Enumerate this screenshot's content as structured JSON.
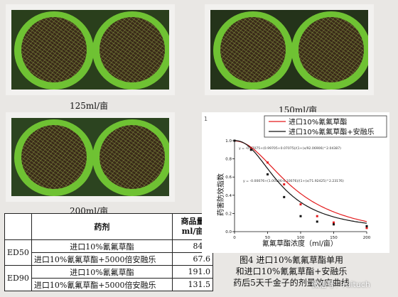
{
  "photos": {
    "label_125": "125ml/亩",
    "label_150": "150ml/亩",
    "label_200": "200ml/亩"
  },
  "table": {
    "col_drug": "药剂",
    "col_amount": "商品量\nml/亩",
    "rows": [
      {
        "group": "ED50",
        "drug": "进口10%氰氟草酯",
        "value": "84.3"
      },
      {
        "group": "",
        "drug": "进口10%氰氟草酯+5000倍安融乐",
        "value": "67.6"
      },
      {
        "group": "ED90",
        "drug": "进口10%氰氟草酯",
        "value": "191.0"
      },
      {
        "group": "",
        "drug": "进口10%氰氟草酯+5000倍安融乐",
        "value": "131.5"
      }
    ]
  },
  "chart": {
    "legend": [
      "进口10%氰氟草酯",
      "进口10%氰氟草酯+安融乐"
    ],
    "ylabel": "药害防效指数",
    "xlabel": "氰氟草酯浓度（ml/亩）",
    "eq1": "y = -0.07075+(0.99705+0.07075)/(1+(x/92.06906)^2.04387)",
    "eq2": "y = -0.00076+(1.00106-0.10076)/(1+(x/71.92425)^2.23176)",
    "marker": "1",
    "colors": {
      "series1": "#e31a1c",
      "series2": "#111111"
    }
  },
  "chart_data": {
    "type": "scatter",
    "xlim": [
      0,
      200
    ],
    "ylim": [
      0,
      1.0
    ],
    "x_ticks": [
      "0",
      "50",
      "100",
      "150",
      "200"
    ],
    "y_ticks": [
      "0.0",
      "0.2",
      "0.4",
      "0.6",
      "0.8",
      "1.0"
    ],
    "series": [
      {
        "name": "进口10%氰氟草酯",
        "x": [
          0,
          25,
          50,
          75,
          100,
          125,
          150,
          200
        ],
        "y": [
          1.0,
          0.92,
          0.76,
          0.52,
          0.3,
          0.17,
          0.1,
          0.04
        ]
      },
      {
        "name": "进口10%氰氟草酯+安融乐",
        "x": [
          0,
          25,
          50,
          75,
          100,
          125,
          150,
          200
        ],
        "y": [
          1.0,
          0.9,
          0.63,
          0.38,
          0.17,
          0.11,
          0.08,
          0.06
        ]
      }
    ]
  },
  "caption": {
    "line1": "图4  进口10%氰氟草酯单用",
    "line2": "和进口10%氰氟草酯+安融乐",
    "line3": "药后5天千金子的剂量效应曲线"
  },
  "watermark": "微信号：ruituch"
}
